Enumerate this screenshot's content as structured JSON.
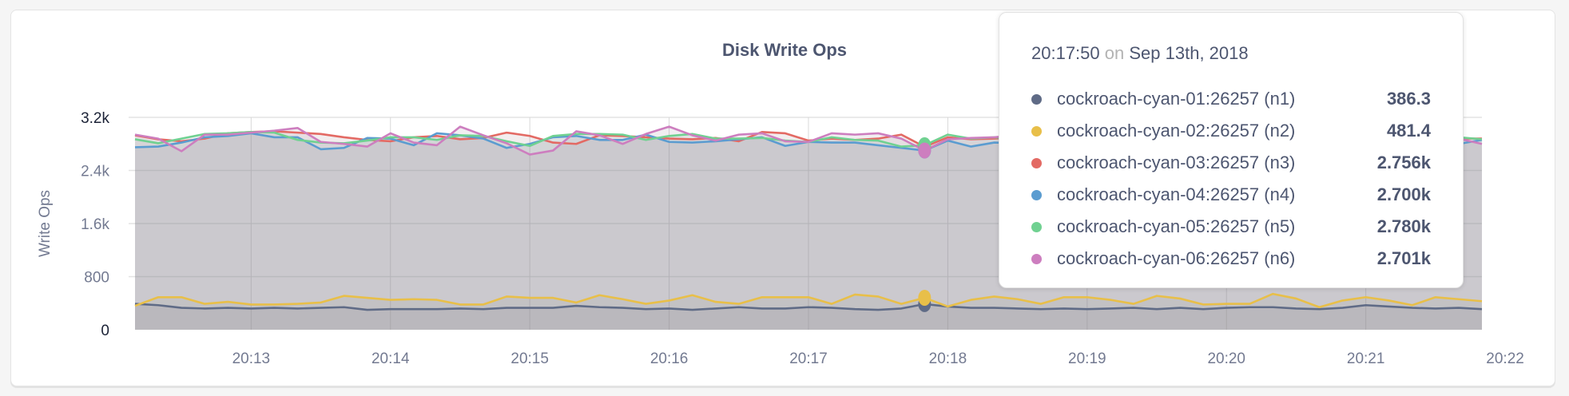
{
  "chart_data": {
    "type": "area",
    "title": "Disk Write Ops",
    "ylabel": "Write Ops",
    "xlabel": "",
    "ylim": [
      0,
      3200
    ],
    "y_ticks": [
      {
        "value": 0,
        "label": "0"
      },
      {
        "value": 800,
        "label": "800"
      },
      {
        "value": 1600,
        "label": "1.6k"
      },
      {
        "value": 2400,
        "label": "2.4k"
      },
      {
        "value": 3200,
        "label": "3.2k"
      }
    ],
    "x_range": [
      "20:12:10",
      "20:21:50"
    ],
    "x_interval_seconds": 10,
    "x_ticks": [
      "20:13",
      "20:14",
      "20:15",
      "20:16",
      "20:17",
      "20:18",
      "20:19",
      "20:20",
      "20:21",
      "20:22"
    ],
    "grid": true,
    "series": [
      {
        "name": "cockroach-cyan-01:26257 (n1)",
        "color": "#5f6b86",
        "values": [
          390,
          370,
          330,
          320,
          330,
          320,
          330,
          320,
          330,
          340,
          300,
          310,
          310,
          310,
          320,
          310,
          330,
          330,
          330,
          360,
          340,
          330,
          310,
          320,
          300,
          320,
          340,
          320,
          320,
          340,
          330,
          310,
          300,
          320,
          386.3,
          350,
          330,
          330,
          320,
          310,
          320,
          310,
          320,
          330,
          310,
          330,
          310,
          330,
          340,
          340,
          320,
          310,
          330,
          370,
          350,
          330,
          320,
          330,
          310
        ]
      },
      {
        "name": "cockroach-cyan-02:26257 (n2)",
        "color": "#e8bf49",
        "values": [
          360,
          490,
          490,
          390,
          420,
          380,
          380,
          390,
          410,
          510,
          480,
          450,
          460,
          450,
          380,
          380,
          500,
          480,
          480,
          410,
          520,
          460,
          390,
          440,
          520,
          420,
          390,
          490,
          490,
          490,
          390,
          530,
          500,
          390,
          481.4,
          350,
          450,
          500,
          460,
          390,
          490,
          490,
          450,
          390,
          510,
          470,
          380,
          390,
          390,
          540,
          470,
          340,
          440,
          490,
          440,
          370,
          490,
          460,
          430
        ]
      },
      {
        "name": "cockroach-cyan-03:26257 (n3)",
        "color": "#e36a64",
        "values": [
          2930,
          2870,
          2840,
          2880,
          2960,
          2980,
          2990,
          2970,
          2950,
          2900,
          2860,
          2840,
          2900,
          2920,
          2870,
          2890,
          2970,
          2920,
          2820,
          2800,
          2930,
          2920,
          2900,
          2880,
          2870,
          2890,
          2840,
          2980,
          2960,
          2850,
          2880,
          2860,
          2880,
          2940,
          2756,
          2900,
          2870,
          2880,
          2900,
          2880,
          2910,
          2870,
          2890,
          2900,
          2910,
          2880,
          2860,
          2880,
          2860,
          2890,
          2930,
          2880,
          2860,
          2900,
          2870,
          2890,
          2860,
          2880,
          2880
        ]
      },
      {
        "name": "cockroach-cyan-04:26257 (n4)",
        "color": "#5b9cd0",
        "values": [
          2750,
          2760,
          2820,
          2900,
          2920,
          2960,
          2900,
          2900,
          2720,
          2740,
          2890,
          2880,
          2780,
          2960,
          2930,
          2880,
          2740,
          2800,
          2900,
          2920,
          2860,
          2860,
          2940,
          2830,
          2820,
          2840,
          2870,
          2900,
          2770,
          2830,
          2820,
          2820,
          2780,
          2740,
          2700,
          2850,
          2760,
          2820,
          2810,
          2800,
          2860,
          2850,
          2800,
          2890,
          2860,
          2810,
          2800,
          2820,
          2860,
          2900,
          2870,
          2780,
          2830,
          2880,
          2810,
          2870,
          2850,
          2800,
          2860
        ]
      },
      {
        "name": "cockroach-cyan-05:26257 (n5)",
        "color": "#70d191",
        "values": [
          2870,
          2810,
          2880,
          2950,
          2960,
          2980,
          2970,
          2860,
          2820,
          2810,
          2850,
          2900,
          2900,
          2860,
          2930,
          2920,
          2840,
          2770,
          2920,
          2950,
          2950,
          2940,
          2860,
          2920,
          2950,
          2880,
          2880,
          2890,
          2850,
          2830,
          2900,
          2860,
          2850,
          2760,
          2780,
          2940,
          2880,
          2900,
          2870,
          2880,
          2920,
          2900,
          2880,
          2860,
          2880,
          2900,
          2910,
          2880,
          2870,
          2900,
          2850,
          2880,
          2930,
          2890,
          2860,
          2870,
          2860,
          2900,
          2870
        ]
      },
      {
        "name": "cockroach-cyan-06:26257 (n6)",
        "color": "#cd7ebf",
        "values": [
          2940,
          2880,
          2690,
          2940,
          2940,
          2970,
          3000,
          3040,
          2830,
          2800,
          2760,
          2960,
          2820,
          2780,
          3060,
          2930,
          2810,
          2640,
          2700,
          2990,
          2930,
          2800,
          2950,
          3060,
          2930,
          2850,
          2940,
          2960,
          2840,
          2830,
          2960,
          2940,
          2960,
          2880,
          2701,
          2870,
          2890,
          2900,
          2930,
          2870,
          2900,
          2890,
          2870,
          2880,
          2910,
          2860,
          2890,
          2900,
          2870,
          2890,
          2880,
          2860,
          2920,
          2870,
          2900,
          2870,
          2850,
          2880,
          2800
        ]
      }
    ],
    "hover_index": 34
  },
  "tooltip": {
    "time": "20:17:50",
    "on": "on",
    "date": "Sep 13th, 2018",
    "rows": [
      {
        "name": "cockroach-cyan-01:26257 (n1)",
        "value": "386.3",
        "color": "#5f6b86"
      },
      {
        "name": "cockroach-cyan-02:26257 (n2)",
        "value": "481.4",
        "color": "#e8bf49"
      },
      {
        "name": "cockroach-cyan-03:26257 (n3)",
        "value": "2.756k",
        "color": "#e36a64"
      },
      {
        "name": "cockroach-cyan-04:26257 (n4)",
        "value": "2.700k",
        "color": "#5b9cd0"
      },
      {
        "name": "cockroach-cyan-05:26257 (n5)",
        "value": "2.780k",
        "color": "#70d191"
      },
      {
        "name": "cockroach-cyan-06:26257 (n6)",
        "value": "2.701k",
        "color": "#cd7ebf"
      }
    ]
  }
}
